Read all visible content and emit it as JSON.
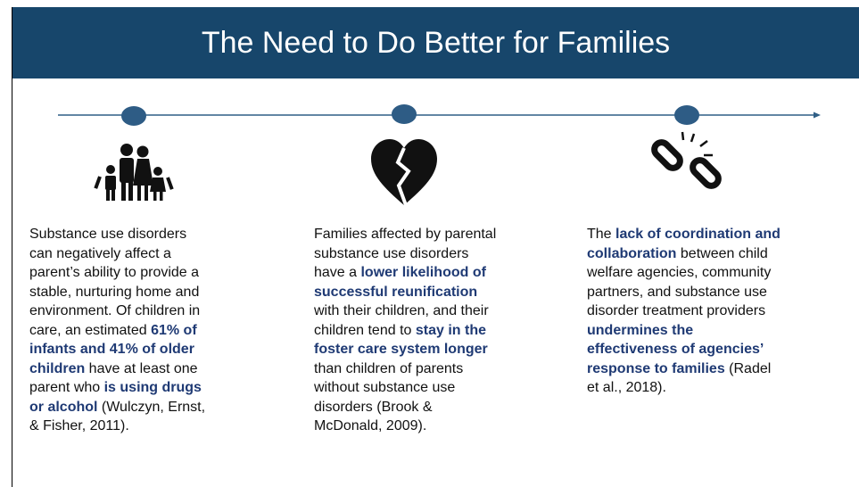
{
  "header": {
    "title": "The Need to Do Better for Families"
  },
  "columns": [
    {
      "lines": [
        [
          "Substance use disorders"
        ],
        [
          "can negatively affect a"
        ],
        [
          "parent’s ability to provide a"
        ],
        [
          "stable, nurturing home and"
        ],
        [
          "environment. Of children in"
        ],
        [
          "care, an estimated ",
          {
            "text": "61% of",
            "bold": true
          }
        ],
        [
          {
            "text": "infants and 41% of older",
            "bold": true
          }
        ],
        [
          {
            "text": "children",
            "bold": true
          },
          " have at least one"
        ],
        [
          "parent who ",
          {
            "text": "is using drugs",
            "bold": true
          }
        ],
        [
          {
            "text": "or alcohol",
            "bold": true
          },
          " (Wulczyn, Ernst,"
        ],
        [
          "& Fisher, 2011)."
        ]
      ]
    },
    {
      "lines": [
        [
          "Families affected by parental"
        ],
        [
          "substance use disorders"
        ],
        [
          "have a ",
          {
            "text": "lower likelihood of",
            "bold": true
          }
        ],
        [
          {
            "text": "successful reunification",
            "bold": true
          }
        ],
        [
          "with their children, and their"
        ],
        [
          "children tend to ",
          {
            "text": "stay in the",
            "bold": true
          }
        ],
        [
          {
            "text": "foster care system longer",
            "bold": true
          }
        ],
        [
          "than children of parents"
        ],
        [
          "without substance use"
        ],
        [
          "disorders (Brook &"
        ],
        [
          "McDonald, 2009)."
        ]
      ]
    },
    {
      "lines": [
        [
          "The ",
          {
            "text": "lack of coordination and",
            "bold": true
          }
        ],
        [
          {
            "text": "collaboration",
            "bold": true
          },
          " between child"
        ],
        [
          "welfare agencies, community"
        ],
        [
          "partners, and substance use"
        ],
        [
          "disorder treatment providers"
        ],
        [
          {
            "text": "undermines the",
            "bold": true
          }
        ],
        [
          {
            "text": "effectiveness of agencies’",
            "bold": true
          }
        ],
        [
          {
            "text": "response to families",
            "bold": true
          },
          " (Radel"
        ],
        [
          "et al., 2018)."
        ]
      ]
    }
  ]
}
